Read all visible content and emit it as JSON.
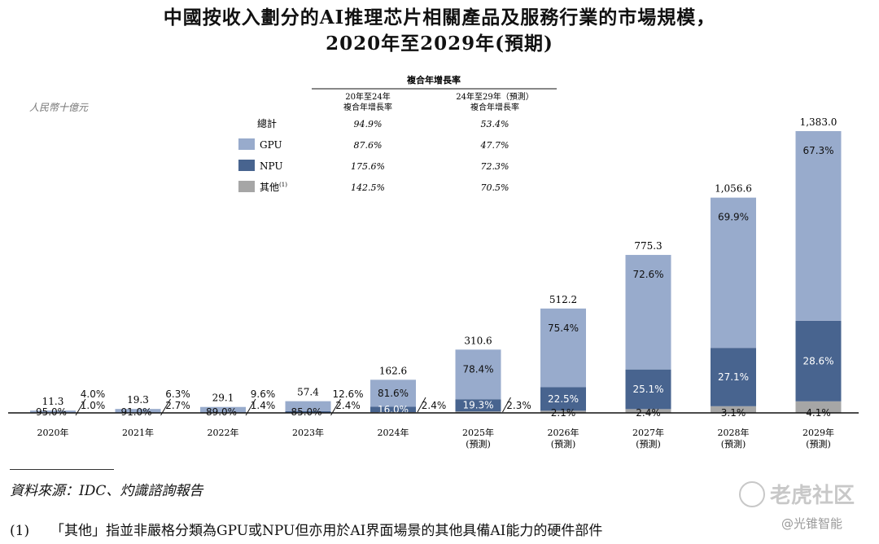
{
  "title": {
    "line1": "中國按收入劃分的AI推理芯片相關產品及服務行業的市場規模，",
    "line2": "2020年至2029年(預期)"
  },
  "unit_label": "人民幣十億元",
  "cagr_table": {
    "header": "複合年增長率",
    "col1": [
      "20年至24年",
      "複合年增長率"
    ],
    "col2": [
      "24年至29年（預測）",
      "複合年增長率"
    ],
    "rows": [
      {
        "label": "總計",
        "v1": "94.9%",
        "v2": "53.4%",
        "swatch": null
      },
      {
        "label": "GPU",
        "v1": "87.6%",
        "v2": "47.7%",
        "swatch": "#98abcc"
      },
      {
        "label": "NPU",
        "v1": "175.6%",
        "v2": "72.3%",
        "swatch": "#48648f"
      },
      {
        "label": "其他",
        "sup": "(1)",
        "v1": "142.5%",
        "v2": "70.5%",
        "swatch": "#a6a6a6"
      }
    ]
  },
  "colors": {
    "gpu": "#98abcc",
    "npu": "#48648f",
    "other": "#a6a6a6",
    "axis": "#111111"
  },
  "chart_data": {
    "type": "bar",
    "stacked": true,
    "title": "中國按收入劃分的AI推理芯片相關產品及服務行業的市場規模，2020年至2029年(預期)",
    "ylabel": "人民幣十億元",
    "ylim": [
      0,
      1383.0
    ],
    "categories": [
      [
        "2020年"
      ],
      [
        "2021年"
      ],
      [
        "2022年"
      ],
      [
        "2023年"
      ],
      [
        "2024年"
      ],
      [
        "2025年",
        "(預測)"
      ],
      [
        "2026年",
        "(預測)"
      ],
      [
        "2027年",
        "(預測)"
      ],
      [
        "2028年",
        "(預測)"
      ],
      [
        "2029年",
        "(預測)"
      ]
    ],
    "totals": [
      "11.3",
      "19.3",
      "29.1",
      "57.4",
      "162.6",
      "310.6",
      "512.2",
      "775.3",
      "1,056.6",
      "1,383.0"
    ],
    "total_values": [
      11.3,
      19.3,
      29.1,
      57.4,
      162.6,
      310.6,
      512.2,
      775.3,
      1056.6,
      1383.0
    ],
    "series": [
      {
        "name": "GPU",
        "share_labels": [
          "95.0%",
          "91.0%",
          "89.0%",
          "85.0%",
          "81.6%",
          "78.4%",
          "75.4%",
          "72.6%",
          "69.9%",
          "67.3%"
        ],
        "shares": [
          95.0,
          91.0,
          89.0,
          85.0,
          81.6,
          78.4,
          75.4,
          72.6,
          69.9,
          67.3
        ]
      },
      {
        "name": "NPU",
        "share_labels": [
          "4.0%",
          "6.3%",
          "9.6%",
          "12.6%",
          "16.0%",
          "19.3%",
          "22.5%",
          "25.1%",
          "27.1%",
          "28.6%"
        ],
        "shares": [
          4.0,
          6.3,
          9.6,
          12.6,
          16.0,
          19.3,
          22.5,
          25.1,
          27.1,
          28.6
        ]
      },
      {
        "name": "其他",
        "share_labels": [
          "1.0%",
          "2.7%",
          "1.4%",
          "2.4%",
          "2.4%",
          "2.3%",
          "2.1%",
          "2.4%",
          "3.1%",
          "4.1%"
        ],
        "shares": [
          1.0,
          2.7,
          1.4,
          2.4,
          2.4,
          2.3,
          2.1,
          2.4,
          3.1,
          4.1
        ]
      }
    ]
  },
  "source_text": "資料來源：IDC、灼識諮詢報告",
  "footnote": {
    "num": "(1)",
    "text": "「其他」指並非嚴格分類為GPU或NPU但亦用於AI界面場景的其他具備AI能力的硬件部件"
  },
  "watermark": {
    "brand": "老虎社区",
    "handle": "@光锥智能"
  }
}
